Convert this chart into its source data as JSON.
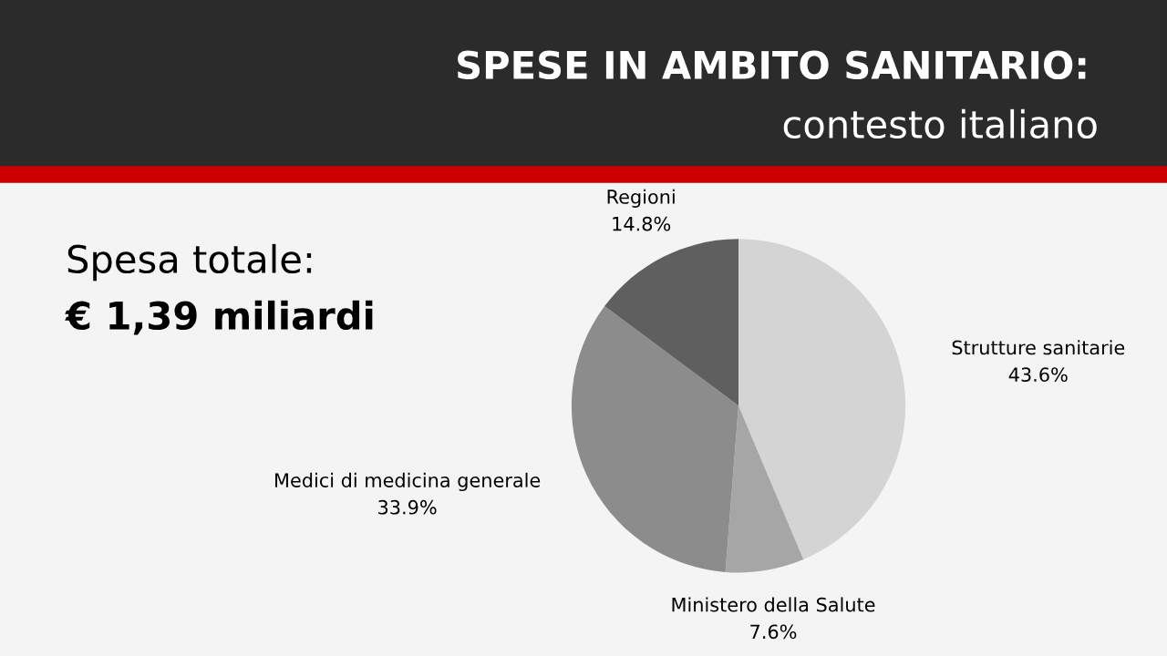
{
  "chart_data": {
    "type": "pie",
    "title": "SPESE IN AMBITO SANITARIO:",
    "subtitle": "contesto italiano",
    "annotations": [
      "Spesa totale:",
      "€ 1,39 miliardi"
    ],
    "categories": [
      "Strutture sanitarie",
      "Ministero della Salute",
      "Medici di medicina generale",
      "Regioni"
    ],
    "values": [
      43.6,
      7.6,
      33.9,
      14.8
    ],
    "value_labels": [
      "43.6%",
      "7.6%",
      "33.9%",
      "14.8%"
    ],
    "colors": [
      "#d4d4d4",
      "#a6a6a6",
      "#8c8c8c",
      "#5f5f5f"
    ],
    "legend": false
  }
}
